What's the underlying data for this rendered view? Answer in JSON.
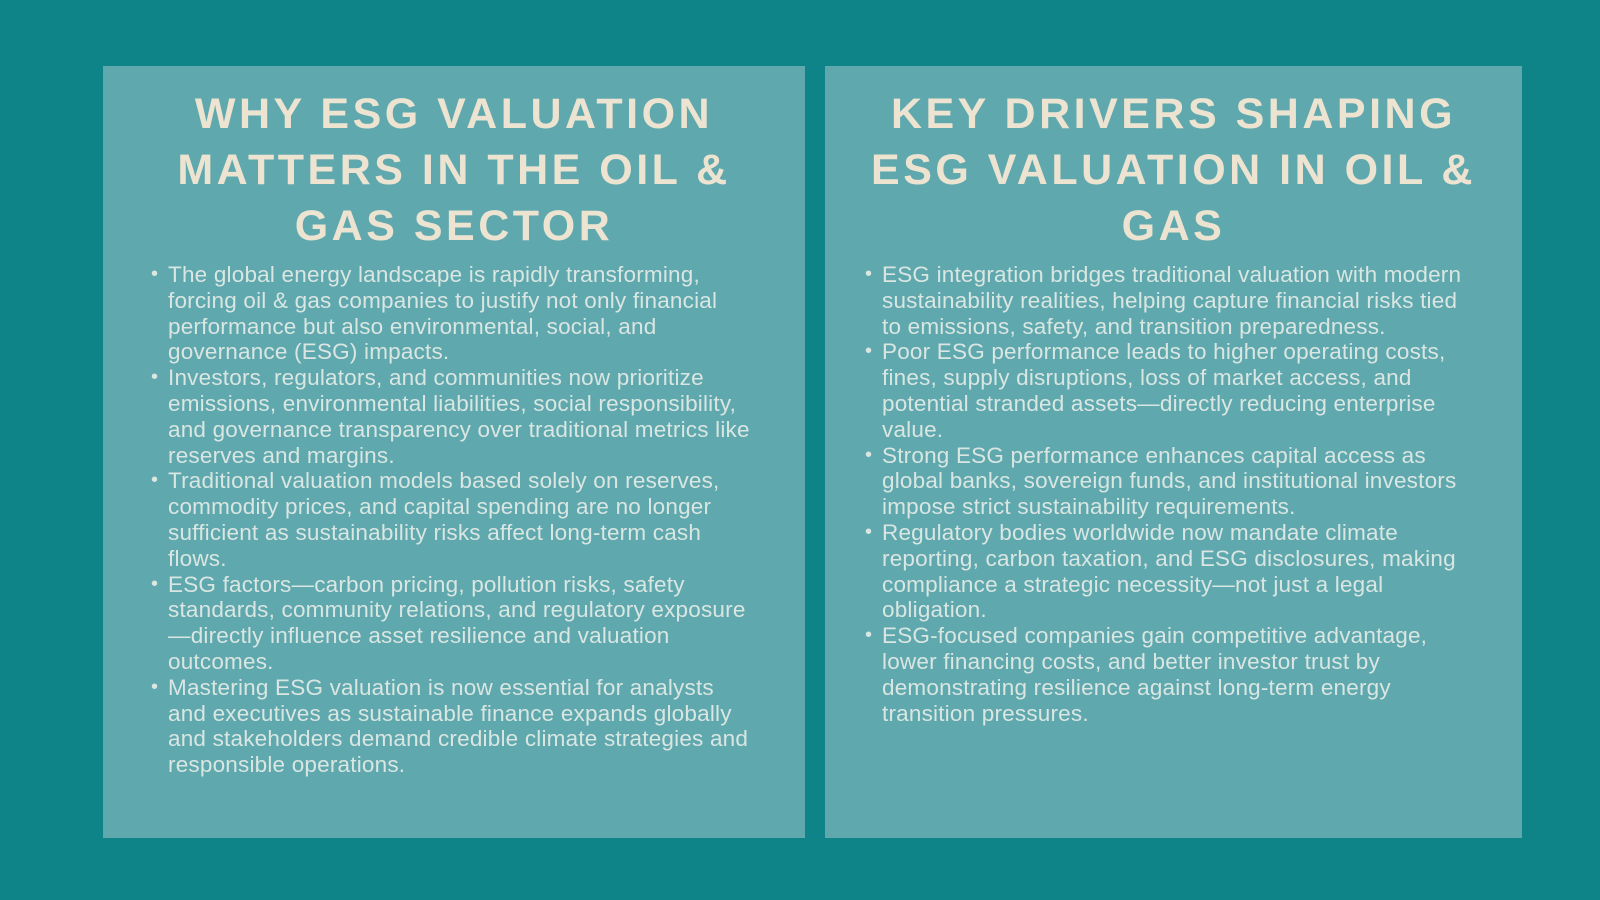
{
  "colors": {
    "background": "#0e8489",
    "panel": "#5fa8ae",
    "title_text": "#ece3d1",
    "body_text": "#d9e6e2"
  },
  "left_panel": {
    "title": "WHY ESG VALUATION MATTERS IN THE OIL & GAS SECTOR",
    "title_lines": [
      "WHY ESG VALUATION",
      "MATTERS IN THE OIL &",
      "GAS SECTOR"
    ],
    "bullets": [
      "The global energy landscape is rapidly transforming, forcing oil & gas companies to justify not only financial performance but also environmental, social, and governance (ESG) impacts.",
      "Investors, regulators, and communities now prioritize emissions, environmental liabilities, social responsibility, and governance transparency over traditional metrics like reserves and margins.",
      "Traditional valuation models based solely on reserves, commodity prices, and capital spending are no longer sufficient as sustainability risks affect long-term cash flows.",
      "ESG factors—carbon pricing, pollution risks, safety standards, community relations, and regulatory exposure—directly influence asset resilience and valuation outcomes.",
      "Mastering ESG valuation is now essential for analysts and executives as sustainable finance expands globally and stakeholders demand credible climate strategies and responsible operations."
    ]
  },
  "right_panel": {
    "title": "KEY DRIVERS SHAPING ESG VALUATION IN OIL & GAS",
    "title_lines": [
      "KEY DRIVERS SHAPING",
      "ESG VALUATION IN OIL &",
      "GAS"
    ],
    "bullets": [
      "ESG integration bridges traditional valuation with modern sustainability realities, helping capture financial risks tied to emissions, safety, and transition preparedness.",
      "Poor ESG performance leads to higher operating costs, fines, supply disruptions, loss of market access, and potential stranded assets—directly reducing enterprise value.",
      "Strong ESG performance enhances capital access as global banks, sovereign funds, and institutional investors impose strict sustainability requirements.",
      "Regulatory bodies worldwide now mandate climate reporting, carbon taxation, and ESG disclosures, making compliance a strategic necessity—not just a legal obligation.",
      "ESG-focused companies gain competitive advantage, lower financing costs, and better investor trust by demonstrating resilience against long-term energy transition pressures."
    ]
  }
}
